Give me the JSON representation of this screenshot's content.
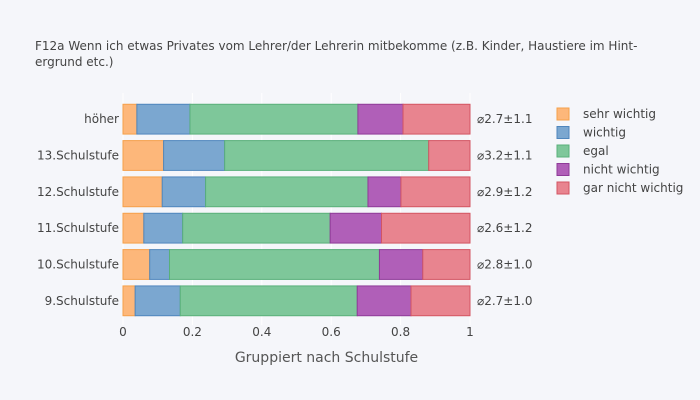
{
  "chart_data": {
    "type": "bar",
    "orientation": "horizontal",
    "stacked": true,
    "title_lines": [
      "F12a Wenn ich etwas Privates vom Lehrer/der Lehrerin mitbekomme (z.B. Kinder, Haustiere im Hint-",
      "ergrund etc.)"
    ],
    "xlabel": "Gruppiert nach Schulstufe",
    "xlim": [
      0,
      1
    ],
    "x_ticks": [
      "0",
      "0.2",
      "0.4",
      "0.6",
      "0.8",
      "1"
    ],
    "x_tick_values": [
      0,
      0.2,
      0.4,
      0.6,
      0.8,
      1
    ],
    "categories": [
      "höher",
      "13.Schulstufe",
      "12.Schulstufe",
      "11.Schulstufe",
      "10.Schulstufe",
      "9.Schulstufe"
    ],
    "annotations": [
      "⌀2.7±1.1",
      "⌀3.2±1.1",
      "⌀2.9±1.2",
      "⌀2.6±1.2",
      "⌀2.8±1.0",
      "⌀2.7±1.0"
    ],
    "series": [
      {
        "name": "sehr wichtig",
        "fill": "#fdb77a",
        "stroke": "#f5a04a",
        "values": [
          0.04,
          0.117,
          0.113,
          0.06,
          0.077,
          0.035
        ]
      },
      {
        "name": "wichtig",
        "fill": "#7ba7d0",
        "stroke": "#4f86bd",
        "values": [
          0.153,
          0.176,
          0.125,
          0.112,
          0.057,
          0.13
        ]
      },
      {
        "name": "egal",
        "fill": "#7ec79a",
        "stroke": "#59b07a",
        "values": [
          0.484,
          0.588,
          0.468,
          0.425,
          0.605,
          0.51
        ]
      },
      {
        "name": "nicht wichtig",
        "fill": "#b05fb8",
        "stroke": "#8e3b98",
        "values": [
          0.13,
          0,
          0.095,
          0.148,
          0.125,
          0.155
        ]
      },
      {
        "name": "gar nicht wichtig",
        "fill": "#e8848f",
        "stroke": "#d35563",
        "values": [
          0.193,
          0.119,
          0.199,
          0.255,
          0.136,
          0.17
        ]
      }
    ],
    "legend_placement": "right"
  }
}
